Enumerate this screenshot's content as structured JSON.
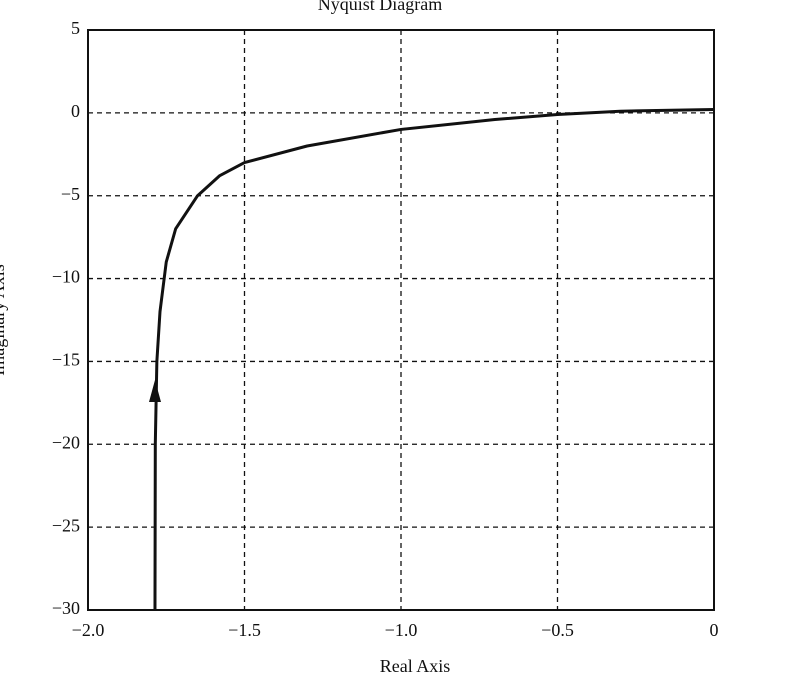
{
  "chart_data": {
    "type": "line",
    "title": "Nyquist Diagram",
    "x_label": "Real Axis",
    "y_label": "Imaginary Axis",
    "x": [
      -1.786,
      -1.785,
      -1.78,
      -1.77,
      -1.75,
      -1.72,
      -1.65,
      -1.58,
      -1.5,
      -1.3,
      -1.0,
      -0.7,
      -0.5,
      -0.3,
      0
    ],
    "values": [
      -30,
      -20,
      -15,
      -12,
      -9,
      -7,
      -5,
      -3.8,
      -3,
      -2,
      -1,
      -0.4,
      -0.1,
      0.1,
      0.2
    ],
    "color": "#111111",
    "xlim": [
      -2,
      0
    ],
    "ylim": [
      -30,
      5
    ],
    "xticks": [
      {
        "value": -2,
        "label": "−2.0"
      },
      {
        "value": -1.5,
        "label": "−1.5"
      },
      {
        "value": -1,
        "label": "−1.0"
      },
      {
        "value": -0.5,
        "label": "−0.5"
      },
      0
    ],
    "yticks": [
      5,
      0,
      {
        "value": -5,
        "label": "−5"
      },
      {
        "value": -10,
        "label": "−10"
      },
      {
        "value": -15,
        "label": "−15"
      },
      {
        "value": -20,
        "label": "−20"
      },
      {
        "value": -25,
        "label": "−25"
      },
      {
        "value": -30,
        "label": "−30"
      }
    ],
    "grid": true
  }
}
